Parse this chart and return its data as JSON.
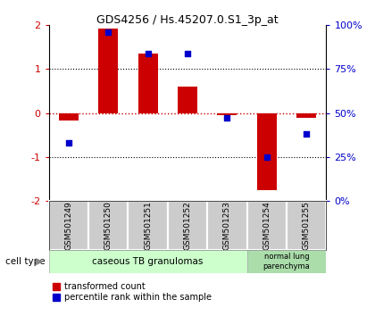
{
  "title": "GDS4256 / Hs.45207.0.S1_3p_at",
  "samples": [
    "GSM501249",
    "GSM501250",
    "GSM501251",
    "GSM501252",
    "GSM501253",
    "GSM501254",
    "GSM501255"
  ],
  "red_values": [
    -0.18,
    1.93,
    1.35,
    0.6,
    -0.05,
    -1.75,
    -0.12
  ],
  "blue_values": [
    33,
    96,
    84,
    84,
    47,
    25,
    38
  ],
  "ylim_left": [
    -2,
    2
  ],
  "ylim_right": [
    0,
    100
  ],
  "yticks_left": [
    -2,
    -1,
    0,
    1,
    2
  ],
  "yticks_right": [
    0,
    25,
    50,
    75,
    100
  ],
  "ytick_labels_right": [
    "0%",
    "25%",
    "50%",
    "75%",
    "100%"
  ],
  "group1_label": "caseous TB granulomas",
  "group2_label": "normal lung\nparenchyma",
  "group1_indices": [
    0,
    1,
    2,
    3,
    4
  ],
  "group2_indices": [
    5,
    6
  ],
  "cell_type_label": "cell type",
  "legend_red": "transformed count",
  "legend_blue": "percentile rank within the sample",
  "red_color": "#cc0000",
  "blue_color": "#0000cc",
  "group1_bg": "#ccffcc",
  "group2_bg": "#aaddaa",
  "sample_bg": "#cccccc",
  "bar_width": 0.5
}
